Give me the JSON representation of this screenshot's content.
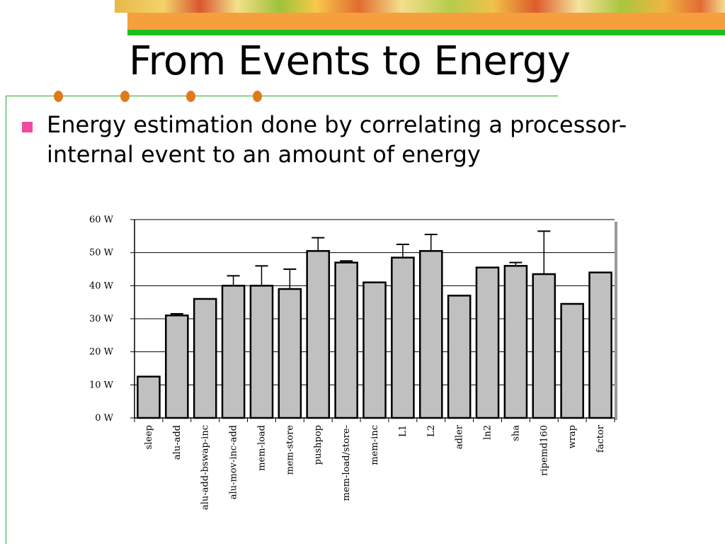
{
  "slide": {
    "title": "From Events to Energy",
    "bullet": "Energy estimation done by correlating a processor-internal event to an amount of energy",
    "colors": {
      "orange_band": "#f5a03c",
      "green_band": "#1fbe1f",
      "bullet_marker": "#f04aa0",
      "dots": "#e07a18"
    }
  },
  "chart_data": {
    "type": "bar",
    "categories": [
      "sleep",
      "alu-add",
      "alu-add-bswap-inc",
      "alu-mov-inc-add",
      "mem-load",
      "mem-store",
      "pushpop",
      "mem-load/store-",
      "mem-inc",
      "L1",
      "L2",
      "adler",
      "ln2",
      "sha",
      "ripemd160",
      "wrap",
      "factor"
    ],
    "values": [
      12.5,
      31,
      36,
      40,
      40,
      39,
      50.5,
      47,
      41,
      48.5,
      50.5,
      37,
      45.5,
      46,
      43.5,
      34.5,
      44
    ],
    "error_upper": [
      null,
      31.5,
      null,
      43,
      46,
      45,
      54.5,
      47.5,
      null,
      52.5,
      55.5,
      null,
      null,
      47,
      56.5,
      null,
      null
    ],
    "ylim": [
      0,
      60
    ],
    "yticks": [
      0,
      10,
      20,
      30,
      40,
      50,
      60
    ],
    "ytick_labels": [
      "0 W",
      "10 W",
      "20 W",
      "30 W",
      "40 W",
      "50 W",
      "60 W"
    ],
    "title": "",
    "xlabel": "",
    "ylabel": "",
    "grid": true,
    "bar_color": "#c0c0c0"
  }
}
